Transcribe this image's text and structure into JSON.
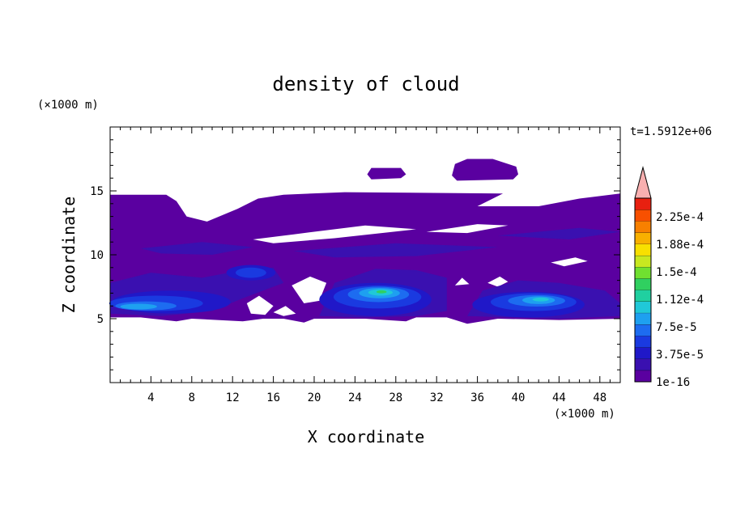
{
  "chart_data": {
    "type": "heatmap",
    "title": "density of cloud",
    "xlabel": "X coordinate",
    "ylabel": "Z coordinate",
    "x_unit": "(×1000 m)",
    "y_unit": "(×1000 m)",
    "time_label": "t=1.5912e+06",
    "xlim": [
      0,
      50
    ],
    "ylim": [
      0,
      20
    ],
    "x_ticks": [
      "4",
      "8",
      "12",
      "16",
      "20",
      "24",
      "28",
      "32",
      "36",
      "40",
      "44",
      "48"
    ],
    "y_ticks": [
      "5",
      "10",
      "15"
    ],
    "colorbar": {
      "labels": [
        "2.25e-4",
        "1.88e-4",
        "1.5e-4",
        "1.12e-4",
        "7.5e-5",
        "3.75e-5",
        "1e-16"
      ],
      "colors": [
        "#5a00a0",
        "#3a10b0",
        "#2018c8",
        "#1a3ae0",
        "#1d6cf0",
        "#1ea0f0",
        "#20c8d8",
        "#20d0a0",
        "#30d060",
        "#70e030",
        "#c8e820",
        "#f8e000",
        "#f8b000",
        "#f88000",
        "#f85000",
        "#e82010"
      ],
      "extend_color": "#f8b0b0"
    },
    "cloud_layers": [
      {
        "level": 0,
        "color": "#5a00a0"
      },
      {
        "level": 1,
        "color": "#3a10b0"
      },
      {
        "level": 2,
        "color": "#2018c8"
      },
      {
        "level": 3,
        "color": "#1a3ae0"
      },
      {
        "level": 4,
        "color": "#1d6cf0"
      },
      {
        "level": 5,
        "color": "#1ea0f0"
      },
      {
        "level": 6,
        "color": "#20c8d8"
      },
      {
        "level": 7,
        "color": "#30d060"
      }
    ]
  }
}
